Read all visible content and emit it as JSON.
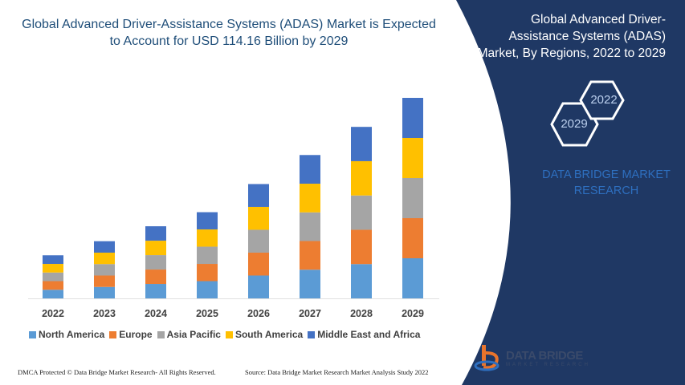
{
  "title": "Global Advanced Driver-Assistance Systems (ADAS) Market is Expected to Account for USD 114.16 Billion by 2029",
  "side_panel": {
    "title": "Global Advanced Driver-Assistance Systems (ADAS) Market, By Regions, 2022 to 2029",
    "hex_start": "2022",
    "hex_end": "2029",
    "brand_text": "DATA BRIDGE MARKET RESEARCH",
    "logo_main": "DATA BRIDGE",
    "logo_sub": "MARKET RESEARCH",
    "panel_color": "#1f3864"
  },
  "footer": {
    "left": "DMCA Protected © Data Bridge Market Research- All Rights Reserved.",
    "right": "Source: Data Bridge Market Research Market Analysis Study 2022"
  },
  "chart_data": {
    "type": "bar",
    "stacked": true,
    "title": "Global Advanced Driver-Assistance Systems (ADAS) Market is Expected to Account for USD 114.16 Billion by 2029",
    "categories": [
      "2022",
      "2023",
      "2024",
      "2025",
      "2026",
      "2027",
      "2028",
      "2029"
    ],
    "y_axis_visible": false,
    "grid": false,
    "legend_position": "bottom",
    "series": [
      {
        "name": "North America",
        "color": "#5b9bd5",
        "values": [
          4.9,
          6.5,
          8.2,
          9.8,
          13.0,
          16.3,
          19.5,
          22.8
        ]
      },
      {
        "name": "Europe",
        "color": "#ed7d31",
        "values": [
          4.9,
          6.5,
          8.2,
          9.8,
          13.0,
          16.3,
          19.5,
          22.8
        ]
      },
      {
        "name": "Asia Pacific",
        "color": "#a5a5a5",
        "values": [
          4.9,
          6.5,
          8.2,
          9.8,
          13.0,
          16.3,
          19.5,
          22.8
        ]
      },
      {
        "name": "South America",
        "color": "#ffc000",
        "values": [
          4.9,
          6.5,
          8.2,
          9.8,
          13.0,
          16.3,
          19.5,
          22.8
        ]
      },
      {
        "name": "Middle East and Africa",
        "color": "#4472c4",
        "values": [
          4.9,
          6.5,
          8.2,
          9.8,
          13.0,
          16.3,
          19.5,
          22.8
        ]
      }
    ]
  }
}
